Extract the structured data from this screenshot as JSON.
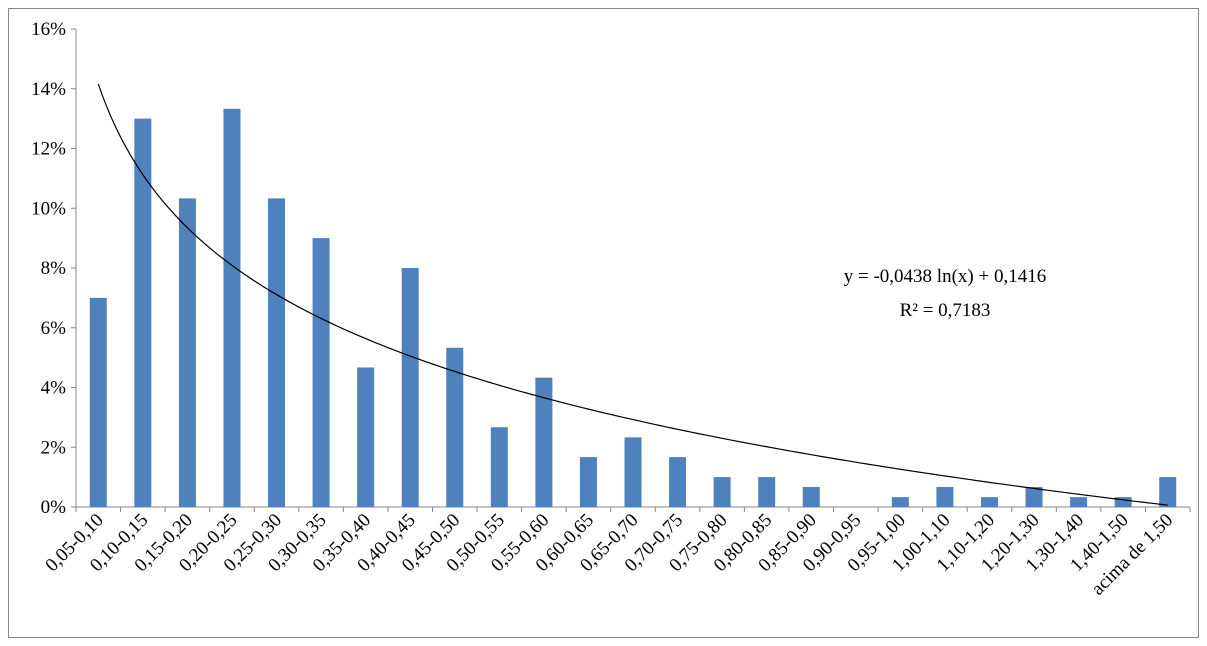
{
  "chart_data": {
    "type": "bar",
    "categories": [
      "0,05-0,10",
      "0,10-0,15",
      "0,15-0,20",
      "0,20-0,25",
      "0,25-0,30",
      "0,30-0,35",
      "0,35-0,40",
      "0,40-0,45",
      "0,45-0,50",
      "0,50-0,55",
      "0,55-0,60",
      "0,60-0,65",
      "0,65-0,70",
      "0,70-0,75",
      "0,75-0,80",
      "0,80-0,85",
      "0,85-0,90",
      "0,90-0,95",
      "0,95-1,00",
      "1,00-1,10",
      "1,10-1,20",
      "1,20-1,30",
      "1,30-1,40",
      "1,40-1,50",
      "acima de 1,50"
    ],
    "values": [
      0.07,
      0.13,
      0.1033,
      0.1333,
      0.1033,
      0.09,
      0.0467,
      0.08,
      0.0533,
      0.0267,
      0.0433,
      0.0167,
      0.0233,
      0.0167,
      0.01,
      0.01,
      0.0067,
      0,
      0.0033,
      0.0067,
      0.0033,
      0.0067,
      0.0033,
      0.0033,
      0.01
    ],
    "ylim": [
      0,
      0.16
    ],
    "yticks": [
      0,
      0.02,
      0.04,
      0.06,
      0.08,
      0.1,
      0.12,
      0.14,
      0.16
    ],
    "ytick_labels": [
      "0%",
      "2%",
      "4%",
      "6%",
      "8%",
      "10%",
      "12%",
      "14%",
      "16%"
    ],
    "bar_color": "#4f81bd",
    "trendline": {
      "type": "logarithmic",
      "a": -0.0438,
      "b": 0.1416,
      "color": "#000000",
      "equation": "y = -0,0438 ln(x) + 0,1416",
      "r_squared": "R² = 0,7183"
    },
    "grid": false,
    "legend": "none"
  }
}
